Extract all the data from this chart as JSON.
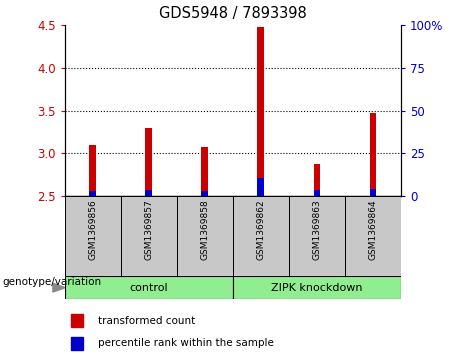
{
  "title": "GDS5948 / 7893398",
  "samples": [
    "GSM1369856",
    "GSM1369857",
    "GSM1369858",
    "GSM1369862",
    "GSM1369863",
    "GSM1369864"
  ],
  "red_values": [
    3.1,
    3.3,
    3.08,
    4.48,
    2.87,
    3.47
  ],
  "blue_values": [
    2.56,
    2.57,
    2.56,
    2.71,
    2.57,
    2.58
  ],
  "ylim_left": [
    2.5,
    4.5
  ],
  "ylim_right": [
    0,
    100
  ],
  "yticks_left": [
    2.5,
    3.0,
    3.5,
    4.0,
    4.5
  ],
  "yticks_right": [
    0,
    25,
    50,
    75,
    100
  ],
  "ytick_labels_right": [
    "0",
    "25",
    "50",
    "75",
    "100%"
  ],
  "groups": [
    {
      "label": "control",
      "indices": [
        0,
        1,
        2
      ]
    },
    {
      "label": "ZIPK knockdown",
      "indices": [
        3,
        4,
        5
      ]
    }
  ],
  "group_label_prefix": "genotype/variation",
  "legend_red": "transformed count",
  "legend_blue": "percentile rank within the sample",
  "bar_width": 0.12,
  "red_color": "#CC0000",
  "blue_color": "#0000CC",
  "bg_label": "#C8C8C8",
  "bg_group": "#90EE90",
  "grid_lines": [
    3.0,
    3.5,
    4.0
  ]
}
